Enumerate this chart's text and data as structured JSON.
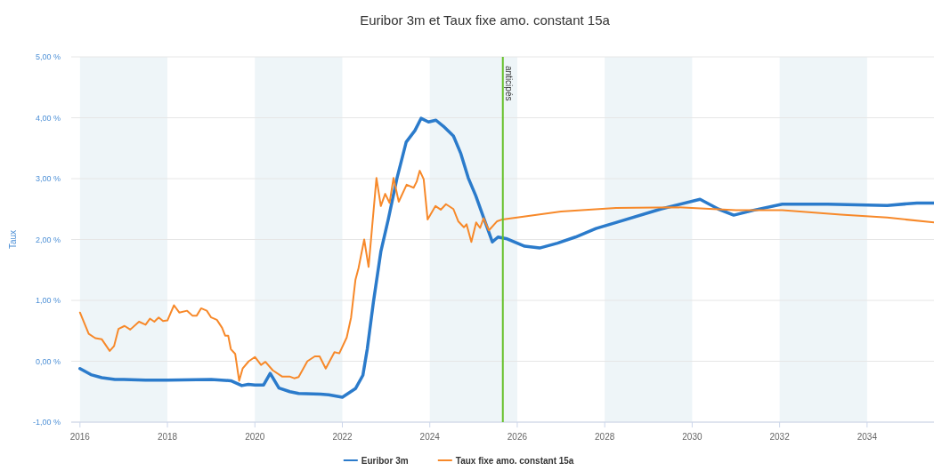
{
  "chart_data": {
    "type": "line",
    "title": "Euribor 3m et Taux fixe amo. constant 15a",
    "ylabel": "Taux",
    "xlim": [
      2015.8,
      2035.53
    ],
    "xticks": [
      2016,
      2018,
      2020,
      2022,
      2024,
      2026,
      2028,
      2030,
      2032,
      2034
    ],
    "ylim": [
      -1,
      5
    ],
    "yticks": [
      {
        "value": -1,
        "label": "-1,00 %"
      },
      {
        "value": 0,
        "label": "0,00 %"
      },
      {
        "value": 1,
        "label": "1,00 %"
      },
      {
        "value": 2,
        "label": "2,00 %"
      },
      {
        "value": 3,
        "label": "3,00 %"
      },
      {
        "value": 4,
        "label": "4,00 %"
      },
      {
        "value": 5,
        "label": "5,00 %"
      }
    ],
    "grid": "y",
    "legend": "bottom",
    "line_style": "solid",
    "marker": "none",
    "ref_lines": [
      {
        "axis": "x",
        "value": 2025.67,
        "label": "anticipés",
        "color": "#66c02a"
      }
    ],
    "bands": [
      {
        "axis": "x",
        "from": 2016,
        "to": 2018,
        "color": "#eef5f8"
      },
      {
        "axis": "x",
        "from": 2020,
        "to": 2022,
        "color": "#eef5f8"
      },
      {
        "axis": "x",
        "from": 2024,
        "to": 2026,
        "color": "#eef5f8"
      },
      {
        "axis": "x",
        "from": 2028,
        "to": 2030,
        "color": "#eef5f8"
      },
      {
        "axis": "x",
        "from": 2032,
        "to": 2034,
        "color": "#eef5f8"
      }
    ],
    "series": [
      {
        "name": "Euribor 3m",
        "color": "#2b7bcb",
        "x": [
          2016.0,
          2016.25,
          2016.5,
          2016.8,
          2017.0,
          2017.5,
          2018.0,
          2019.0,
          2019.45,
          2019.7,
          2019.85,
          2020.0,
          2020.2,
          2020.35,
          2020.55,
          2020.8,
          2021.0,
          2021.5,
          2021.69,
          2022.0,
          2022.3,
          2022.47,
          2022.57,
          2022.71,
          2022.88,
          2023.05,
          2023.25,
          2023.46,
          2023.66,
          2023.8,
          2023.97,
          2024.14,
          2024.31,
          2024.54,
          2024.71,
          2024.88,
          2025.05,
          2025.43,
          2025.56,
          2025.77,
          2026.17,
          2026.51,
          2026.92,
          2027.33,
          2027.8,
          2028.26,
          2029.28,
          2030.18,
          2030.6,
          2030.95,
          2031.4,
          2032.06,
          2033.1,
          2034.46,
          2035.14,
          2035.53
        ],
        "values": [
          -0.12,
          -0.22,
          -0.27,
          -0.3,
          -0.3,
          -0.31,
          -0.31,
          -0.3,
          -0.32,
          -0.4,
          -0.38,
          -0.39,
          -0.39,
          -0.2,
          -0.44,
          -0.5,
          -0.53,
          -0.54,
          -0.55,
          -0.59,
          -0.45,
          -0.23,
          0.2,
          0.97,
          1.8,
          2.33,
          3.01,
          3.6,
          3.79,
          3.99,
          3.93,
          3.96,
          3.86,
          3.7,
          3.41,
          3.01,
          2.72,
          1.96,
          2.04,
          2.01,
          1.89,
          1.86,
          1.94,
          2.04,
          2.18,
          2.28,
          2.5,
          2.66,
          2.5,
          2.4,
          2.48,
          2.58,
          2.58,
          2.56,
          2.6,
          2.6
        ]
      },
      {
        "name": "Taux fixe amo. constant 15a",
        "color": "#f7892a",
        "x": [
          2016.0,
          2016.2,
          2016.35,
          2016.5,
          2016.68,
          2016.78,
          2016.88,
          2017.02,
          2017.15,
          2017.35,
          2017.5,
          2017.6,
          2017.7,
          2017.8,
          2017.9,
          2018.0,
          2018.15,
          2018.27,
          2018.45,
          2018.57,
          2018.67,
          2018.77,
          2018.9,
          2019.0,
          2019.13,
          2019.25,
          2019.32,
          2019.39,
          2019.45,
          2019.55,
          2019.64,
          2019.72,
          2019.86,
          2020.0,
          2020.14,
          2020.24,
          2020.41,
          2020.62,
          2020.79,
          2020.9,
          2021.0,
          2021.2,
          2021.37,
          2021.48,
          2021.62,
          2021.82,
          2021.93,
          2022.1,
          2022.2,
          2022.3,
          2022.37,
          2022.5,
          2022.6,
          2022.78,
          2022.88,
          2022.98,
          2023.08,
          2023.17,
          2023.29,
          2023.47,
          2023.63,
          2023.7,
          2023.77,
          2023.86,
          2023.95,
          2024.13,
          2024.25,
          2024.37,
          2024.54,
          2024.65,
          2024.78,
          2024.84,
          2024.95,
          2025.06,
          2025.15,
          2025.23,
          2025.35,
          2025.54,
          2025.66,
          2027.0,
          2028.26,
          2029.65,
          2031.0,
          2032.06,
          2033.4,
          2034.46,
          2035.53
        ],
        "values": [
          0.8,
          0.45,
          0.38,
          0.36,
          0.17,
          0.25,
          0.53,
          0.58,
          0.52,
          0.65,
          0.6,
          0.7,
          0.65,
          0.72,
          0.66,
          0.67,
          0.92,
          0.8,
          0.83,
          0.75,
          0.75,
          0.87,
          0.83,
          0.72,
          0.68,
          0.55,
          0.42,
          0.42,
          0.2,
          0.12,
          -0.32,
          -0.12,
          0.0,
          0.07,
          -0.06,
          -0.01,
          -0.15,
          -0.25,
          -0.25,
          -0.28,
          -0.26,
          0.0,
          0.08,
          0.08,
          -0.12,
          0.15,
          0.13,
          0.39,
          0.72,
          1.34,
          1.53,
          2.0,
          1.55,
          3.01,
          2.55,
          2.75,
          2.6,
          3.01,
          2.62,
          2.9,
          2.85,
          2.95,
          3.13,
          2.99,
          2.33,
          2.55,
          2.49,
          2.58,
          2.5,
          2.3,
          2.2,
          2.25,
          1.96,
          2.28,
          2.19,
          2.35,
          2.15,
          2.3,
          2.33,
          2.46,
          2.52,
          2.53,
          2.48,
          2.48,
          2.41,
          2.36,
          2.28
        ]
      }
    ]
  }
}
